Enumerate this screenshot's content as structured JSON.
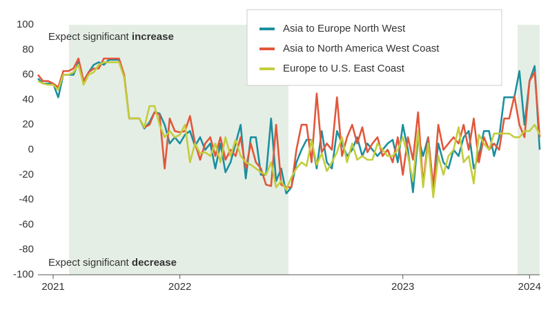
{
  "chart_data": {
    "type": "line",
    "annotations": [
      {
        "text": "Expect significant",
        "emphasis": "increase"
      },
      {
        "text": "Expect significant",
        "emphasis": "decrease"
      }
    ],
    "categories": [
      null,
      null,
      null,
      "2021",
      null,
      null,
      null,
      null,
      null,
      null,
      null,
      null,
      null,
      null,
      null,
      null,
      null,
      null,
      null,
      null,
      null,
      null,
      null,
      null,
      null,
      null,
      null,
      null,
      "2022",
      null,
      null,
      null,
      null,
      null,
      null,
      null,
      null,
      null,
      null,
      null,
      null,
      null,
      null,
      null,
      null,
      null,
      null,
      null,
      null,
      null,
      null,
      null,
      null,
      null,
      null,
      null,
      null,
      null,
      null,
      null,
      null,
      null,
      null,
      null,
      null,
      null,
      null,
      null,
      null,
      null,
      null,
      null,
      "2023",
      null,
      null,
      null,
      null,
      null,
      null,
      null,
      null,
      null,
      null,
      null,
      null,
      null,
      null,
      null,
      null,
      null,
      null,
      null,
      null,
      null,
      null,
      null,
      null,
      "2024",
      null,
      null
    ],
    "series": [
      {
        "name": "Asia to Europe North West",
        "color": "#1b8f9e",
        "values": [
          57,
          53,
          53,
          53,
          42,
          60,
          60,
          60,
          70,
          55,
          62,
          68,
          70,
          68,
          72,
          72,
          72,
          60,
          25,
          25,
          25,
          17,
          22,
          30,
          29,
          20,
          5,
          10,
          5,
          12,
          15,
          3,
          10,
          0,
          5,
          -15,
          5,
          -18,
          -10,
          5,
          20,
          -23,
          10,
          10,
          -20,
          -20,
          25,
          -25,
          -15,
          -35,
          -30,
          -10,
          0,
          8,
          8,
          -15,
          15,
          -10,
          -15,
          15,
          5,
          -5,
          0,
          10,
          -5,
          5,
          0,
          -5,
          0,
          5,
          8,
          -10,
          20,
          0,
          -34,
          10,
          -5,
          10,
          -30,
          5,
          -10,
          -15,
          0,
          -5,
          10,
          15,
          -15,
          -5,
          15,
          15,
          -5,
          10,
          42,
          42,
          42,
          63,
          20,
          55,
          67,
          0
        ]
      },
      {
        "name": "Asia to North America West Coast",
        "color": "#e2573a",
        "values": [
          60,
          55,
          55,
          53,
          50,
          63,
          63,
          65,
          73,
          55,
          62,
          65,
          65,
          73,
          73,
          73,
          73,
          60,
          25,
          25,
          25,
          18,
          20,
          30,
          28,
          -15,
          25,
          15,
          14,
          15,
          27,
          5,
          -8,
          5,
          10,
          -5,
          10,
          -8,
          0,
          -5,
          10,
          -15,
          5,
          -10,
          -15,
          -28,
          -29,
          20,
          -28,
          -30,
          -30,
          0,
          20,
          20,
          -10,
          45,
          -2,
          5,
          0,
          42,
          -5,
          10,
          20,
          5,
          18,
          -2,
          5,
          10,
          -5,
          0,
          -10,
          10,
          -20,
          10,
          -8,
          30,
          -28,
          10,
          -30,
          20,
          0,
          5,
          10,
          5,
          20,
          0,
          25,
          -10,
          10,
          0,
          5,
          0,
          25,
          25,
          43,
          20,
          10,
          55,
          62,
          10
        ]
      },
      {
        "name": "Europe to U.S. East Coast",
        "color": "#c3cd3c",
        "values": [
          55,
          53,
          52,
          52,
          48,
          60,
          60,
          62,
          68,
          52,
          60,
          62,
          68,
          70,
          70,
          70,
          70,
          58,
          25,
          25,
          25,
          18,
          35,
          35,
          20,
          10,
          15,
          10,
          12,
          20,
          -10,
          5,
          -3,
          -2,
          -5,
          5,
          -10,
          10,
          -5,
          8,
          -5,
          -10,
          -12,
          -15,
          -18,
          -20,
          -10,
          -30,
          -25,
          -32,
          -22,
          -15,
          -10,
          -13,
          8,
          -12,
          -3,
          -17,
          -10,
          -2,
          10,
          -10,
          5,
          -8,
          -5,
          -8,
          -8,
          5,
          0,
          -5,
          -5,
          0,
          10,
          -5,
          -25,
          15,
          -30,
          5,
          -38,
          -5,
          -20,
          -5,
          0,
          18,
          -10,
          -5,
          -27,
          12,
          5,
          0,
          13,
          13,
          13,
          13,
          10,
          10,
          15,
          15,
          20,
          12
        ]
      }
    ],
    "ylim": [
      -100,
      100
    ],
    "yticks": [
      -100,
      -80,
      -60,
      -40,
      -20,
      0,
      20,
      40,
      60,
      80,
      100
    ],
    "grid": false,
    "legend": "top-right"
  }
}
